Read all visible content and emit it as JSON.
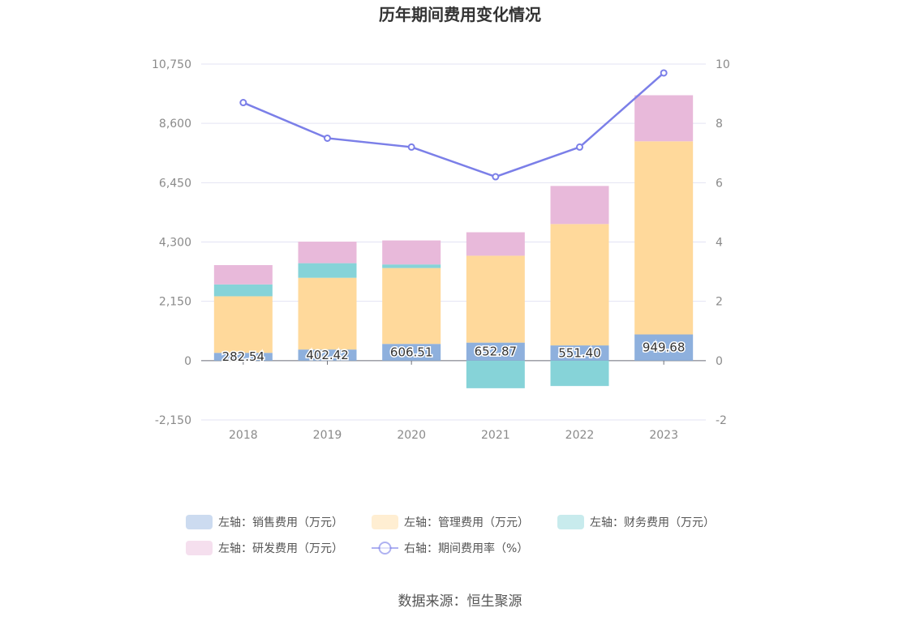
{
  "title": "历年期间费用变化情况",
  "source": "数据来源：恒生聚源",
  "chart_data": {
    "type": "bar",
    "stacked": true,
    "categories": [
      "2018",
      "2019",
      "2020",
      "2021",
      "2022",
      "2023"
    ],
    "left_axis": {
      "ticks": [
        "-2,150",
        "0",
        "2,150",
        "4,300",
        "6,450",
        "8,600",
        "10,750"
      ],
      "ylim": [
        -2150,
        10750
      ]
    },
    "right_axis": {
      "ticks": [
        "-2",
        "0",
        "2",
        "4",
        "6",
        "8",
        "10"
      ],
      "ylim": [
        -2,
        10
      ]
    },
    "series": [
      {
        "name": "左轴：销售费用（万元）",
        "type": "bar",
        "axis": "left",
        "color": "#8eb0dd",
        "values": [
          282.54,
          402.42,
          606.51,
          652.87,
          551.4,
          949.68
        ],
        "labels": [
          "282.54",
          "402.42",
          "606.51",
          "652.87",
          "551.40",
          "949.68"
        ]
      },
      {
        "name": "左轴：管理费用（万元）",
        "type": "bar",
        "axis": "left",
        "color": "#ffd99b",
        "values": [
          2050,
          2600,
          2750,
          3150,
          4400,
          7000
        ]
      },
      {
        "name": "左轴：财务费用（万元）",
        "type": "bar",
        "axis": "left",
        "color": "#86d3d8",
        "values": [
          430,
          530,
          130,
          -1000,
          -920,
          0
        ]
      },
      {
        "name": "左轴：研发费用（万元）",
        "type": "bar",
        "axis": "left",
        "color": "#e8b9da",
        "values": [
          700,
          780,
          870,
          850,
          1380,
          1670
        ]
      },
      {
        "name": "右轴：期间费用率（%）",
        "type": "line",
        "axis": "right",
        "color": "#7b7fe8",
        "values": [
          8.7,
          7.5,
          7.2,
          6.2,
          7.2,
          9.7
        ]
      }
    ]
  }
}
